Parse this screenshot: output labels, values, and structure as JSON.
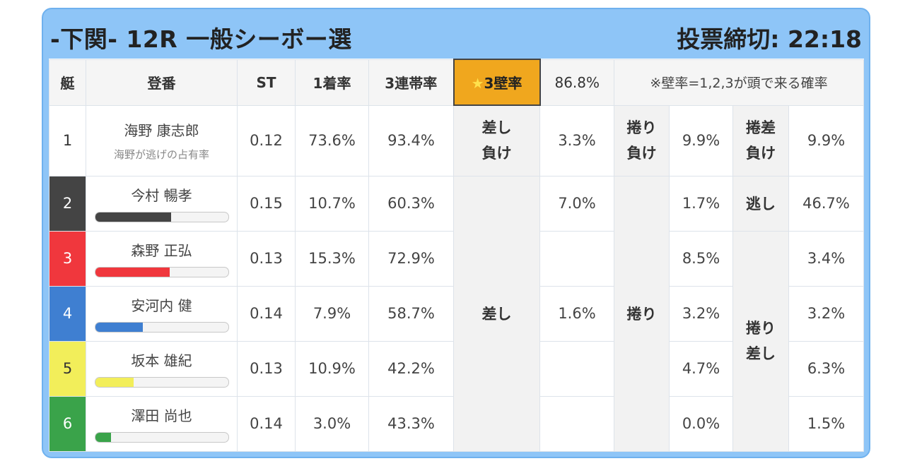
{
  "header": {
    "race_title": "-下関- 12R 一般シーボー選",
    "deadline": "投票締切: 22:18"
  },
  "columns": {
    "lane": "艇",
    "racer": "登番",
    "st": "ST",
    "win": "1着率",
    "top3": "3連帯率",
    "star": "★",
    "wall_label": "3壁率",
    "wall_value": "86.8%",
    "note": "※壁率=1,2,3が頭で来る確率"
  },
  "colors": {
    "lane1": "#ffffff",
    "lane2": "#444444",
    "lane3": "#f0373d",
    "lane4": "#3f7fd1",
    "lane5": "#f2ee5a",
    "lane6": "#3aa34a"
  },
  "rows": [
    {
      "lane": "1",
      "name": "海野 康志郎",
      "sub": "海野が逃げの占有率",
      "st": "0.12",
      "win": "73.6%",
      "top3": "93.4%"
    },
    {
      "lane": "2",
      "name": "今村 暢孝",
      "bar": 0.57,
      "st": "0.15",
      "win": "10.7%",
      "top3": "60.3%"
    },
    {
      "lane": "3",
      "name": "森野 正弘",
      "bar": 0.56,
      "st": "0.13",
      "win": "15.3%",
      "top3": "72.9%"
    },
    {
      "lane": "4",
      "name": "安河内 健",
      "bar": 0.36,
      "st": "0.14",
      "win": "7.9%",
      "top3": "58.7%"
    },
    {
      "lane": "5",
      "name": "坂本 雄紀",
      "bar": 0.29,
      "st": "0.13",
      "win": "10.9%",
      "top3": "42.2%"
    },
    {
      "lane": "6",
      "name": "澤田 尚也",
      "bar": 0.12,
      "st": "0.14",
      "win": "3.0%",
      "top3": "43.3%"
    }
  ],
  "kimarite": {
    "r1_sashi_make_1": "差し",
    "r1_sashi_make_2": "負け",
    "r1_sashi_make_val": "3.3%",
    "r1_makuri_make_1": "捲り",
    "r1_makuri_make_2": "負け",
    "r1_makuri_make_val": "9.9%",
    "r1_makurisashi_make_1": "捲差",
    "r1_makurisashi_make_2": "負け",
    "r1_makurisashi_make_val": "9.9%",
    "sashi": "差し",
    "sashi_r2": "7.0%",
    "sashi_r4": "1.6%",
    "makuri": "捲り",
    "makuri_r2": "1.7%",
    "makuri_r3": "8.5%",
    "makuri_r4": "3.2%",
    "makuri_r5": "4.7%",
    "makuri_r6": "0.0%",
    "nige": "逃し",
    "nige_r2": "46.7%",
    "makurisashi_1": "捲り",
    "makurisashi_2": "差し",
    "makurisashi_r3": "3.4%",
    "makurisashi_r4": "3.2%",
    "makurisashi_r5": "6.3%",
    "makurisashi_r6": "1.5%"
  }
}
